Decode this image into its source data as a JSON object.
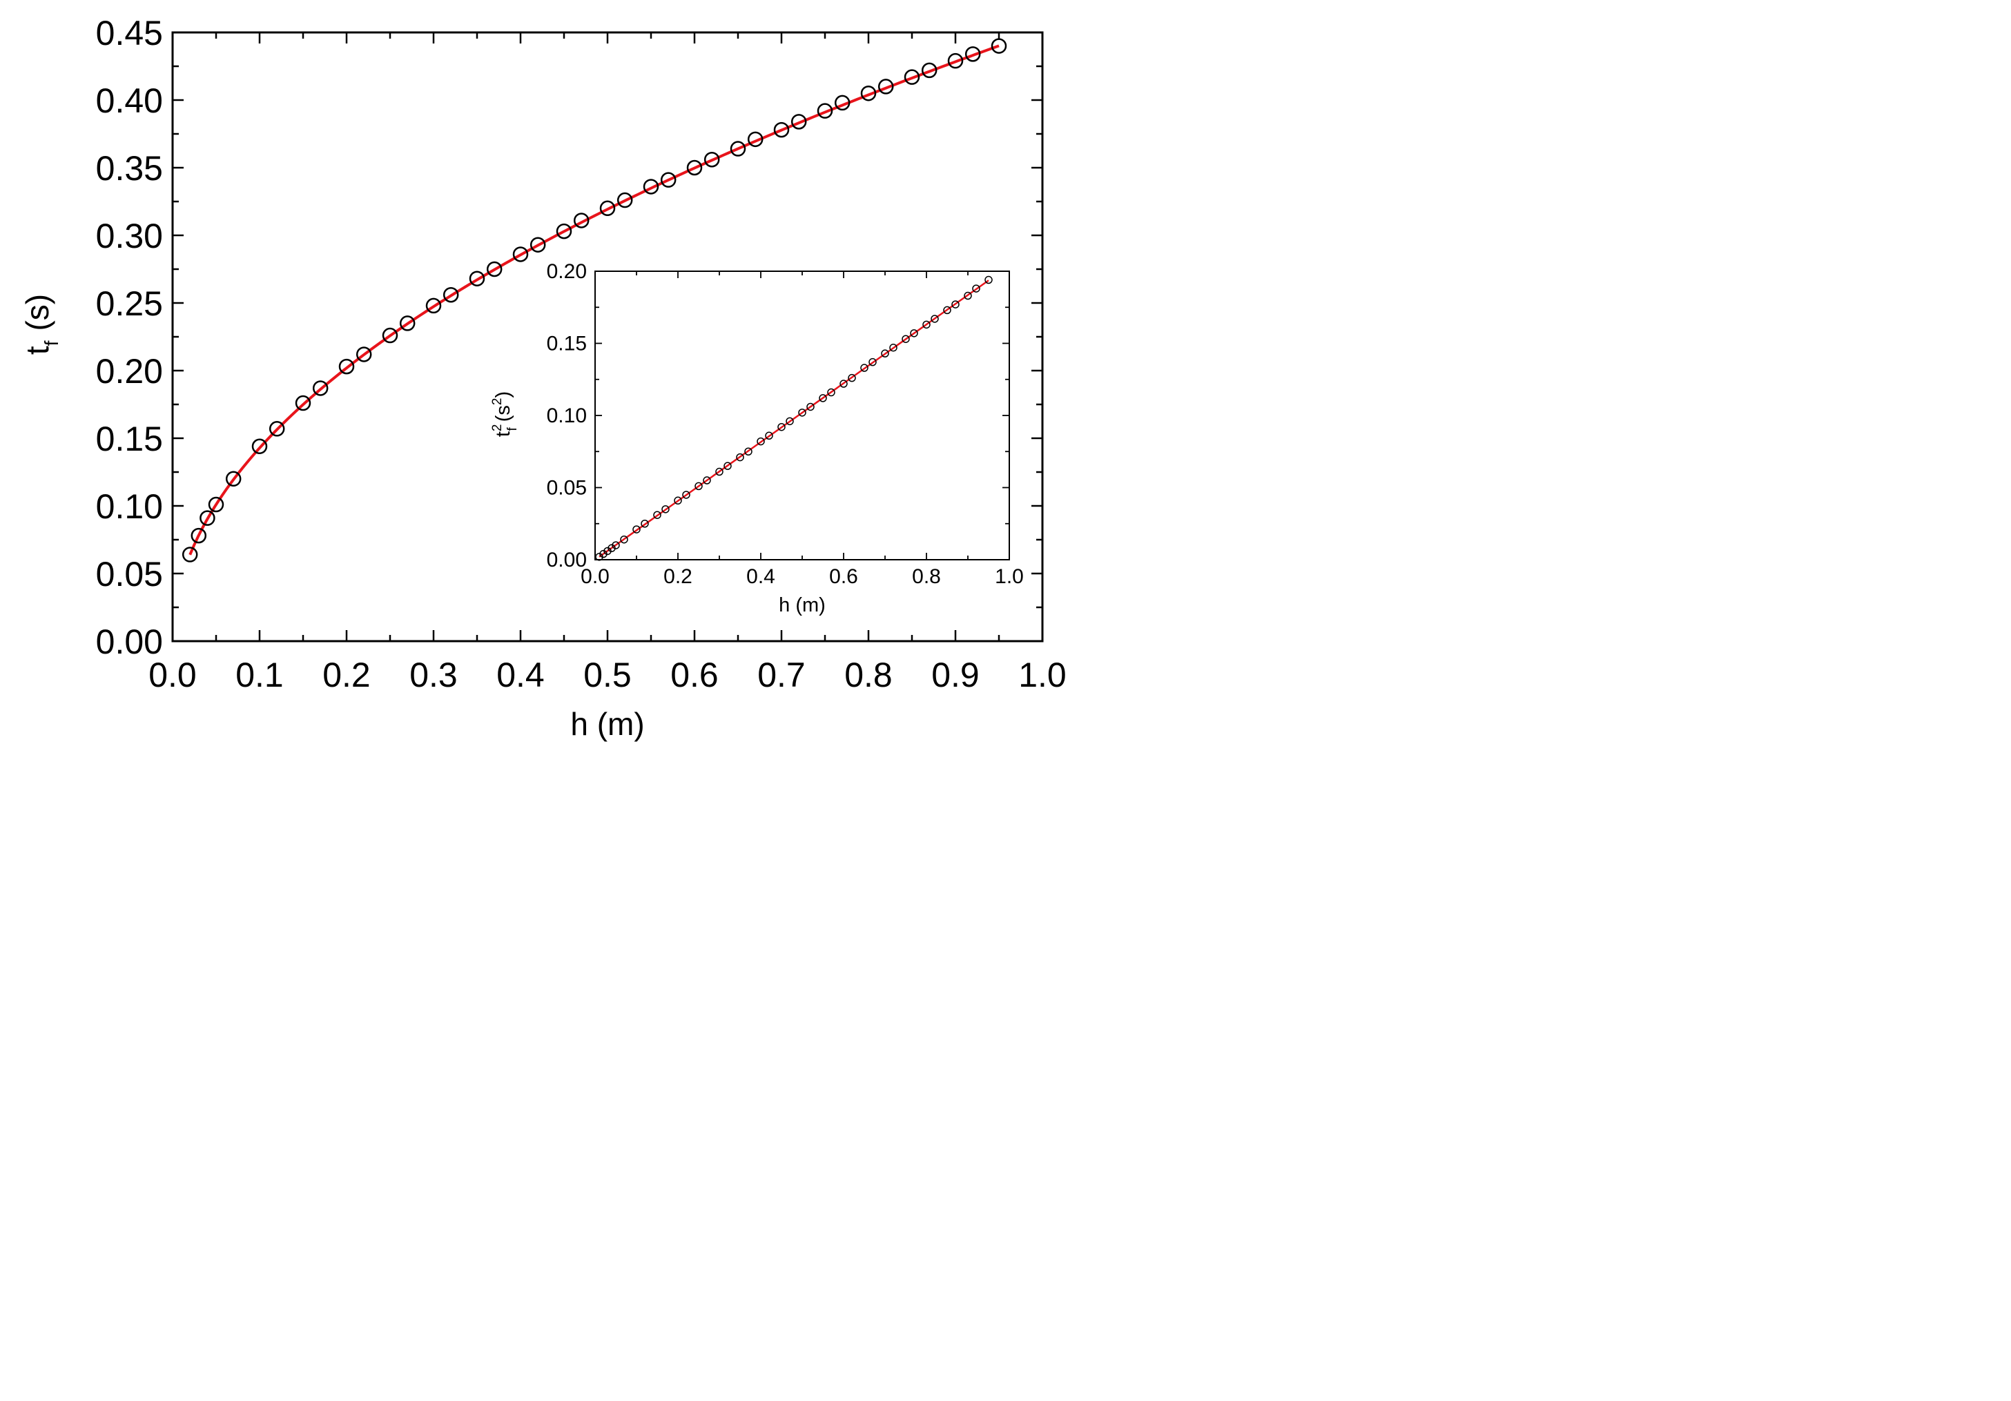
{
  "chart_data": [
    {
      "type": "scatter",
      "xlabel": "h  (m)",
      "ylabel": "t_f (s)",
      "ylabel_parts": {
        "base": "t",
        "sub": "f",
        "unit": "(s)"
      },
      "xlim": [
        0.0,
        1.0
      ],
      "ylim": [
        0.0,
        0.45
      ],
      "xticks": [
        "0.0",
        "0.1",
        "0.2",
        "0.3",
        "0.4",
        "0.5",
        "0.6",
        "0.7",
        "0.8",
        "0.9",
        "1.0"
      ],
      "yticks": [
        "0.00",
        "0.05",
        "0.10",
        "0.15",
        "0.20",
        "0.25",
        "0.30",
        "0.35",
        "0.40",
        "0.45"
      ],
      "grid": false,
      "series": [
        {
          "marker": "open-circle",
          "color": "#000000",
          "x": [
            0.02,
            0.03,
            0.04,
            0.05,
            0.07,
            0.1,
            0.12,
            0.15,
            0.17,
            0.2,
            0.22,
            0.25,
            0.27,
            0.3,
            0.32,
            0.35,
            0.37,
            0.4,
            0.42,
            0.45,
            0.47,
            0.5,
            0.52,
            0.55,
            0.57,
            0.6,
            0.62,
            0.65,
            0.67,
            0.7,
            0.72,
            0.75,
            0.77,
            0.8,
            0.82,
            0.85,
            0.87,
            0.9,
            0.92,
            0.95
          ],
          "y": [
            0.064,
            0.078,
            0.091,
            0.101,
            0.12,
            0.144,
            0.157,
            0.176,
            0.187,
            0.203,
            0.212,
            0.226,
            0.235,
            0.248,
            0.256,
            0.268,
            0.275,
            0.286,
            0.293,
            0.303,
            0.311,
            0.32,
            0.326,
            0.336,
            0.341,
            0.35,
            0.356,
            0.364,
            0.371,
            0.378,
            0.384,
            0.392,
            0.398,
            0.405,
            0.41,
            0.417,
            0.422,
            0.429,
            0.434,
            0.44
          ]
        },
        {
          "line": true,
          "color": "#e8141b",
          "fit": "sqrt(2h/g)",
          "g": 9.81,
          "x_range": [
            0.02,
            0.95
          ]
        }
      ]
    },
    {
      "type": "scatter",
      "inset": true,
      "xlabel": "h (m)",
      "ylabel": "t_f^2 (s^2)",
      "ylabel_parts": {
        "base": "t",
        "sup": "2",
        "sub": "f",
        "unit_base": "(s",
        "unit_sup": "2",
        "unit_close": ")"
      },
      "xlim": [
        0.0,
        1.0
      ],
      "ylim": [
        0.0,
        0.2
      ],
      "xticks": [
        "0.0",
        "0.2",
        "0.4",
        "0.6",
        "0.8",
        "1.0"
      ],
      "yticks": [
        "0.00",
        "0.05",
        "0.10",
        "0.15",
        "0.20"
      ],
      "grid": false,
      "series": [
        {
          "marker": "open-circle",
          "color": "#000000",
          "x": [
            0.01,
            0.02,
            0.03,
            0.04,
            0.05,
            0.07,
            0.1,
            0.12,
            0.15,
            0.17,
            0.2,
            0.22,
            0.25,
            0.27,
            0.3,
            0.32,
            0.35,
            0.37,
            0.4,
            0.42,
            0.45,
            0.47,
            0.5,
            0.52,
            0.55,
            0.57,
            0.6,
            0.62,
            0.65,
            0.67,
            0.7,
            0.72,
            0.75,
            0.77,
            0.8,
            0.82,
            0.85,
            0.87,
            0.9,
            0.92,
            0.95
          ],
          "y": [
            0.002,
            0.004,
            0.006,
            0.008,
            0.01,
            0.014,
            0.021,
            0.025,
            0.031,
            0.035,
            0.041,
            0.045,
            0.051,
            0.055,
            0.061,
            0.065,
            0.071,
            0.075,
            0.082,
            0.086,
            0.092,
            0.096,
            0.102,
            0.106,
            0.112,
            0.116,
            0.122,
            0.126,
            0.133,
            0.137,
            0.143,
            0.147,
            0.153,
            0.157,
            0.163,
            0.167,
            0.173,
            0.177,
            0.183,
            0.188,
            0.194
          ]
        },
        {
          "line": true,
          "color": "#e8141b",
          "fit": "2h/g",
          "g": 9.81,
          "x_range": [
            0.01,
            0.95
          ]
        }
      ]
    }
  ]
}
